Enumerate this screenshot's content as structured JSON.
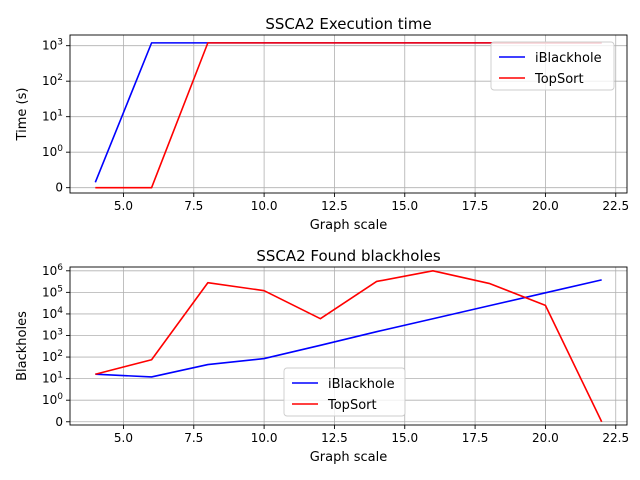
{
  "chart_data": [
    {
      "type": "line",
      "title": "SSCA2 Execution time",
      "xlabel": "Graph scale",
      "ylabel": "Time (s)",
      "yscale": "symlog",
      "xlim": [
        3.1,
        22.9
      ],
      "ylim": [
        -0.15,
        2000
      ],
      "xticks": [
        5.0,
        7.5,
        10.0,
        12.5,
        15.0,
        17.5,
        20.0,
        22.5
      ],
      "xtick_labels": [
        "5.0",
        "7.5",
        "10.0",
        "12.5",
        "15.0",
        "17.5",
        "20.0",
        "22.5"
      ],
      "yticks": [
        0,
        1,
        10,
        100,
        1000
      ],
      "ytick_labels": [
        "0",
        "10^0",
        "10^1",
        "10^2",
        "10^3"
      ],
      "grid": true,
      "legend_position": "upper right",
      "x": [
        4,
        6,
        8,
        10,
        12,
        14,
        16,
        18,
        20,
        22
      ],
      "series": [
        {
          "name": "iBlackhole",
          "color": "#0000ff",
          "values": [
            0.15,
            1200,
            1200,
            1200,
            1200,
            1200,
            1200,
            1200,
            1200,
            1200
          ]
        },
        {
          "name": "TopSort",
          "color": "#ff0000",
          "values": [
            0,
            0,
            1200,
            1200,
            1200,
            1200,
            1200,
            1200,
            1200,
            1200
          ]
        }
      ]
    },
    {
      "type": "line",
      "title": "SSCA2 Found blackholes",
      "xlabel": "Graph scale",
      "ylabel": "Blackholes",
      "yscale": "symlog",
      "xlim": [
        3.1,
        22.9
      ],
      "ylim": [
        -0.15,
        1500000
      ],
      "xticks": [
        5.0,
        7.5,
        10.0,
        12.5,
        15.0,
        17.5,
        20.0,
        22.5
      ],
      "xtick_labels": [
        "5.0",
        "7.5",
        "10.0",
        "12.5",
        "15.0",
        "17.5",
        "20.0",
        "22.5"
      ],
      "yticks": [
        0,
        1,
        10,
        100,
        1000,
        10000,
        100000,
        1000000
      ],
      "ytick_labels": [
        "0",
        "10^0",
        "10^1",
        "10^2",
        "10^3",
        "10^4",
        "10^5",
        "10^6"
      ],
      "grid": true,
      "legend_position": "lower center",
      "x": [
        4,
        6,
        8,
        10,
        12,
        14,
        16,
        18,
        20,
        22
      ],
      "series": [
        {
          "name": "iBlackhole",
          "color": "#0000ff",
          "values": [
            16,
            12,
            45,
            85,
            350,
            1500,
            6000,
            24000,
            95000,
            380000
          ]
        },
        {
          "name": "TopSort",
          "color": "#ff0000",
          "values": [
            16,
            75,
            280000,
            120000,
            6000,
            320000,
            1000000,
            260000,
            25000,
            0
          ]
        }
      ]
    }
  ]
}
